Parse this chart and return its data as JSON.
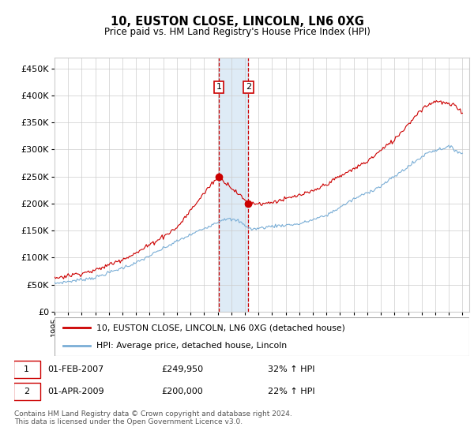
{
  "title": "10, EUSTON CLOSE, LINCOLN, LN6 0XG",
  "subtitle": "Price paid vs. HM Land Registry's House Price Index (HPI)",
  "footer": "Contains HM Land Registry data © Crown copyright and database right 2024.\nThis data is licensed under the Open Government Licence v3.0.",
  "red_label": "10, EUSTON CLOSE, LINCOLN, LN6 0XG (detached house)",
  "blue_label": "HPI: Average price, detached house, Lincoln",
  "transaction1_date": "01-FEB-2007",
  "transaction1_price": "£249,950",
  "transaction1_hpi": "32% ↑ HPI",
  "transaction2_date": "01-APR-2009",
  "transaction2_price": "£200,000",
  "transaction2_hpi": "22% ↑ HPI",
  "red_color": "#cc0000",
  "blue_color": "#7aaed6",
  "shade_color": "#c8dff0",
  "grid_color": "#cccccc",
  "bg_color": "#ffffff",
  "ylim": [
    0,
    470000
  ],
  "yticks": [
    0,
    50000,
    100000,
    150000,
    200000,
    250000,
    300000,
    350000,
    400000,
    450000
  ],
  "ytick_labels": [
    "£0",
    "£50K",
    "£100K",
    "£150K",
    "£200K",
    "£250K",
    "£300K",
    "£350K",
    "£400K",
    "£450K"
  ],
  "trans1_year": 2007.08,
  "trans1_y": 249950,
  "trans2_year": 2009.25,
  "trans2_y": 200000,
  "xmin": 1995,
  "xmax": 2025.5
}
